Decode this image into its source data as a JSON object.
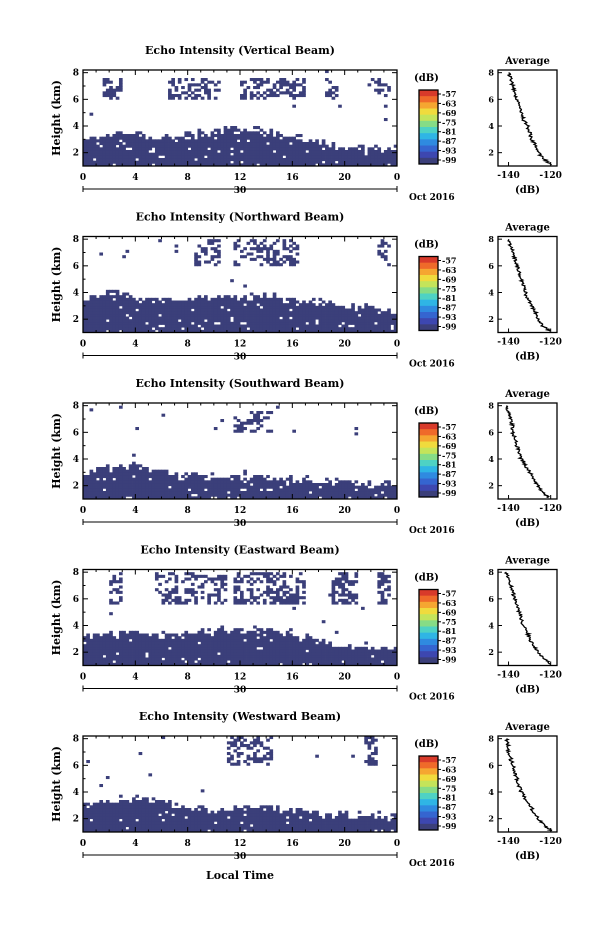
{
  "colors": {
    "echo": "#3b3f7a",
    "background": "#ffffff",
    "axis": "#000000"
  },
  "colorbar": {
    "label": "(dB)",
    "ticks": [
      "-57",
      "-63",
      "-69",
      "-75",
      "-81",
      "-87",
      "-93",
      "-99"
    ],
    "colors": [
      "#d83a2a",
      "#ef6a2a",
      "#f5a631",
      "#f0db3d",
      "#c4e45a",
      "#86dc86",
      "#4ed2c4",
      "#2fb5e5",
      "#2f8ae0",
      "#3565d0",
      "#3d47b0",
      "#3b3f7a"
    ]
  },
  "panels_common": {
    "x_ticks": [
      "0",
      "4",
      "8",
      "12",
      "16",
      "20",
      "0"
    ],
    "date_day": "30",
    "date_month_year": "Oct 2016",
    "y_label": "Height (km)",
    "y_ticks": [
      "2",
      "4",
      "6",
      "8"
    ],
    "avg_title": "Average",
    "avg_x_ticks": [
      "-140",
      "-120"
    ],
    "avg_xlabel": "(dB)",
    "avg_y_ticks": [
      "2",
      "4",
      "6",
      "8"
    ]
  },
  "x_axis_label": "Local Time",
  "chart_data": [
    {
      "type": "heatmap",
      "title": "Echo Intensity (Vertical Beam)",
      "xlim": [
        0,
        24
      ],
      "ylim": [
        1,
        8.2
      ],
      "low_layer": {
        "times": [
          0,
          2,
          4,
          6,
          8,
          10,
          12,
          14,
          16,
          18,
          20,
          22,
          24
        ],
        "tops": [
          2.9,
          3.2,
          3.2,
          3.0,
          3.2,
          3.4,
          3.6,
          3.4,
          3.0,
          2.6,
          2.3,
          2.2,
          2.1
        ]
      },
      "clutter_band": [
        6.0,
        7.6
      ],
      "clutter_hours": [
        [
          1.5,
          3.0
        ],
        [
          6.5,
          10.5
        ],
        [
          12.0,
          17.0
        ],
        [
          18.5,
          19.5
        ],
        [
          22.0,
          23.5
        ]
      ],
      "average": {
        "height": [
          1.1,
          1.5,
          2.0,
          2.5,
          3.0,
          3.5,
          4.0,
          4.5,
          5.0,
          5.5,
          6.0,
          6.5,
          7.0,
          7.5,
          8.0
        ],
        "db": [
          -120,
          -123,
          -126,
          -127,
          -129,
          -130,
          -131,
          -133,
          -134,
          -135,
          -136,
          -137,
          -138,
          -139,
          -140
        ]
      }
    },
    {
      "type": "heatmap",
      "title": "Echo Intensity (Northward Beam)",
      "xlim": [
        0,
        24
      ],
      "ylim": [
        1,
        8.2
      ],
      "low_layer": {
        "times": [
          0,
          2,
          4,
          6,
          8,
          10,
          12,
          14,
          16,
          18,
          20,
          22,
          24
        ],
        "tops": [
          3.5,
          3.8,
          3.5,
          3.3,
          3.4,
          3.5,
          3.6,
          3.6,
          3.4,
          3.1,
          2.9,
          2.6,
          2.6
        ]
      },
      "clutter_band": [
        6.0,
        7.9
      ],
      "clutter_hours": [
        [
          8.5,
          10.5
        ],
        [
          11.5,
          16.5
        ],
        [
          22.5,
          23.5
        ]
      ],
      "average": {
        "height": [
          1.1,
          1.5,
          2.0,
          2.5,
          3.0,
          3.5,
          4.0,
          4.5,
          5.0,
          5.5,
          6.0,
          6.5,
          7.0,
          7.5,
          8.0
        ],
        "db": [
          -120,
          -124,
          -126,
          -127,
          -129,
          -131,
          -132,
          -133,
          -134,
          -135,
          -136,
          -137,
          -138,
          -139,
          -140
        ]
      }
    },
    {
      "type": "heatmap",
      "title": "Echo Intensity (Southward Beam)",
      "xlim": [
        0,
        24
      ],
      "ylim": [
        1,
        8.2
      ],
      "low_layer": {
        "times": [
          0,
          2,
          4,
          6,
          8,
          10,
          12,
          14,
          16,
          18,
          20,
          22,
          24
        ],
        "tops": [
          2.7,
          3.2,
          3.3,
          3.0,
          2.7,
          2.5,
          2.5,
          2.5,
          2.4,
          2.2,
          2.1,
          1.9,
          1.9
        ]
      },
      "clutter_band": [
        6.0,
        7.6
      ],
      "clutter_hours": [
        [
          11.5,
          14.5
        ]
      ],
      "average": {
        "height": [
          1.1,
          1.5,
          2.0,
          2.5,
          3.0,
          3.5,
          4.0,
          4.5,
          5.0,
          5.5,
          6.0,
          6.5,
          7.0,
          7.5,
          8.0
        ],
        "db": [
          -121,
          -124,
          -126,
          -128,
          -130,
          -132,
          -134,
          -135,
          -136,
          -137,
          -138,
          -138,
          -139,
          -140,
          -141
        ]
      }
    },
    {
      "type": "heatmap",
      "title": "Echo Intensity (Eastward Beam)",
      "xlim": [
        0,
        24
      ],
      "ylim": [
        1,
        8.2
      ],
      "low_layer": {
        "times": [
          0,
          2,
          4,
          6,
          8,
          10,
          12,
          14,
          16,
          18,
          20,
          22,
          24
        ],
        "tops": [
          3.0,
          3.2,
          3.2,
          3.1,
          3.2,
          3.4,
          3.6,
          3.6,
          3.3,
          2.8,
          2.4,
          2.3,
          2.2
        ]
      },
      "clutter_band": [
        5.6,
        7.9
      ],
      "clutter_hours": [
        [
          2.0,
          3.0
        ],
        [
          5.5,
          11.0
        ],
        [
          11.5,
          17.0
        ],
        [
          19.0,
          21.0
        ],
        [
          22.5,
          23.5
        ]
      ],
      "average": {
        "height": [
          1.1,
          1.5,
          2.0,
          2.5,
          3.0,
          3.5,
          4.0,
          4.5,
          5.0,
          5.5,
          6.0,
          6.5,
          7.0,
          7.5,
          8.0
        ],
        "db": [
          -120,
          -123,
          -126,
          -128,
          -130,
          -131,
          -133,
          -134,
          -135,
          -136,
          -137,
          -138,
          -139,
          -140,
          -141
        ]
      }
    },
    {
      "type": "heatmap",
      "title": "Echo Intensity (Westward Beam)",
      "xlim": [
        0,
        24
      ],
      "ylim": [
        1,
        8.2
      ],
      "low_layer": {
        "times": [
          0,
          2,
          4,
          6,
          8,
          10,
          12,
          14,
          16,
          18,
          20,
          22,
          24
        ],
        "tops": [
          2.9,
          3.2,
          3.4,
          3.1,
          2.7,
          2.5,
          2.7,
          2.7,
          2.5,
          2.3,
          2.2,
          2.1,
          2.0
        ]
      },
      "clutter_band": [
        6.0,
        8.1
      ],
      "clutter_hours": [
        [
          11.0,
          14.5
        ],
        [
          21.5,
          22.5
        ]
      ],
      "average": {
        "height": [
          1.1,
          1.5,
          2.0,
          2.5,
          3.0,
          3.5,
          4.0,
          4.5,
          5.0,
          5.5,
          6.0,
          6.5,
          7.0,
          7.5,
          8.0
        ],
        "db": [
          -120,
          -123,
          -126,
          -128,
          -130,
          -132,
          -134,
          -135,
          -136,
          -137,
          -138,
          -139,
          -140,
          -140,
          -141
        ]
      }
    }
  ]
}
